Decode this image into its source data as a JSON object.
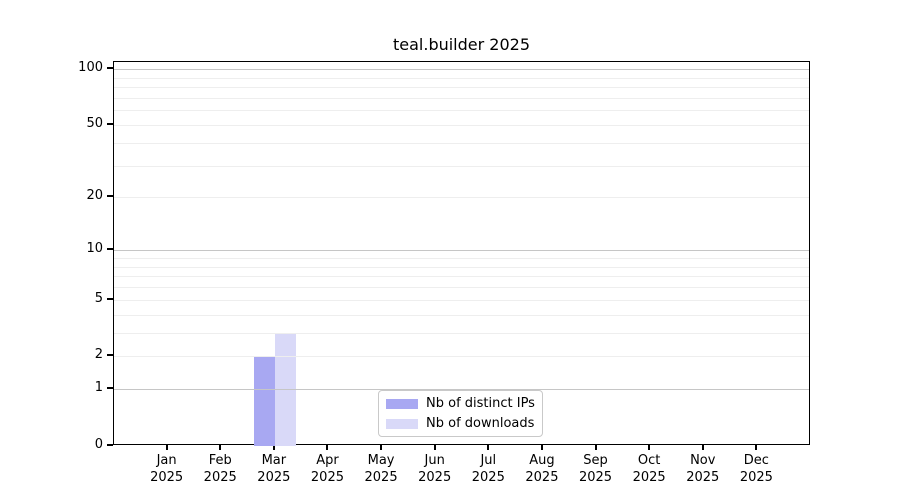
{
  "chart_data": {
    "type": "bar",
    "title": "teal.builder 2025",
    "categories": [
      "Jan",
      "Feb",
      "Mar",
      "Apr",
      "May",
      "Jun",
      "Jul",
      "Aug",
      "Sep",
      "Oct",
      "Nov",
      "Dec"
    ],
    "category_sublabel": "2025",
    "series": [
      {
        "name": "Nb of distinct IPs",
        "color": "#a8a8f2",
        "values": [
          0,
          0,
          2,
          0,
          0,
          0,
          0,
          0,
          0,
          0,
          0,
          0
        ]
      },
      {
        "name": "Nb of downloads",
        "color": "#d9d9f8",
        "values": [
          0,
          0,
          3,
          0,
          0,
          0,
          0,
          0,
          0,
          0,
          0,
          0
        ]
      }
    ],
    "y_axis": {
      "scale": "log10(1+x)",
      "tick_values": [
        0,
        1,
        2,
        5,
        10,
        20,
        50,
        100
      ],
      "major_gridlines": [
        1,
        10,
        100
      ],
      "minor_gridlines": [
        2,
        3,
        4,
        5,
        6,
        7,
        8,
        9,
        20,
        30,
        40,
        50,
        60,
        70,
        80,
        90
      ],
      "ylim_top_value": 109
    },
    "legend_position": "bottom-center",
    "grid": true,
    "colors": {
      "grid_major": "#c6c6c6",
      "grid_minor": "#eeeeee",
      "axis": "#000000",
      "text": "#000000",
      "legend_border": "#c9c9c9",
      "background": "#ffffff"
    }
  }
}
